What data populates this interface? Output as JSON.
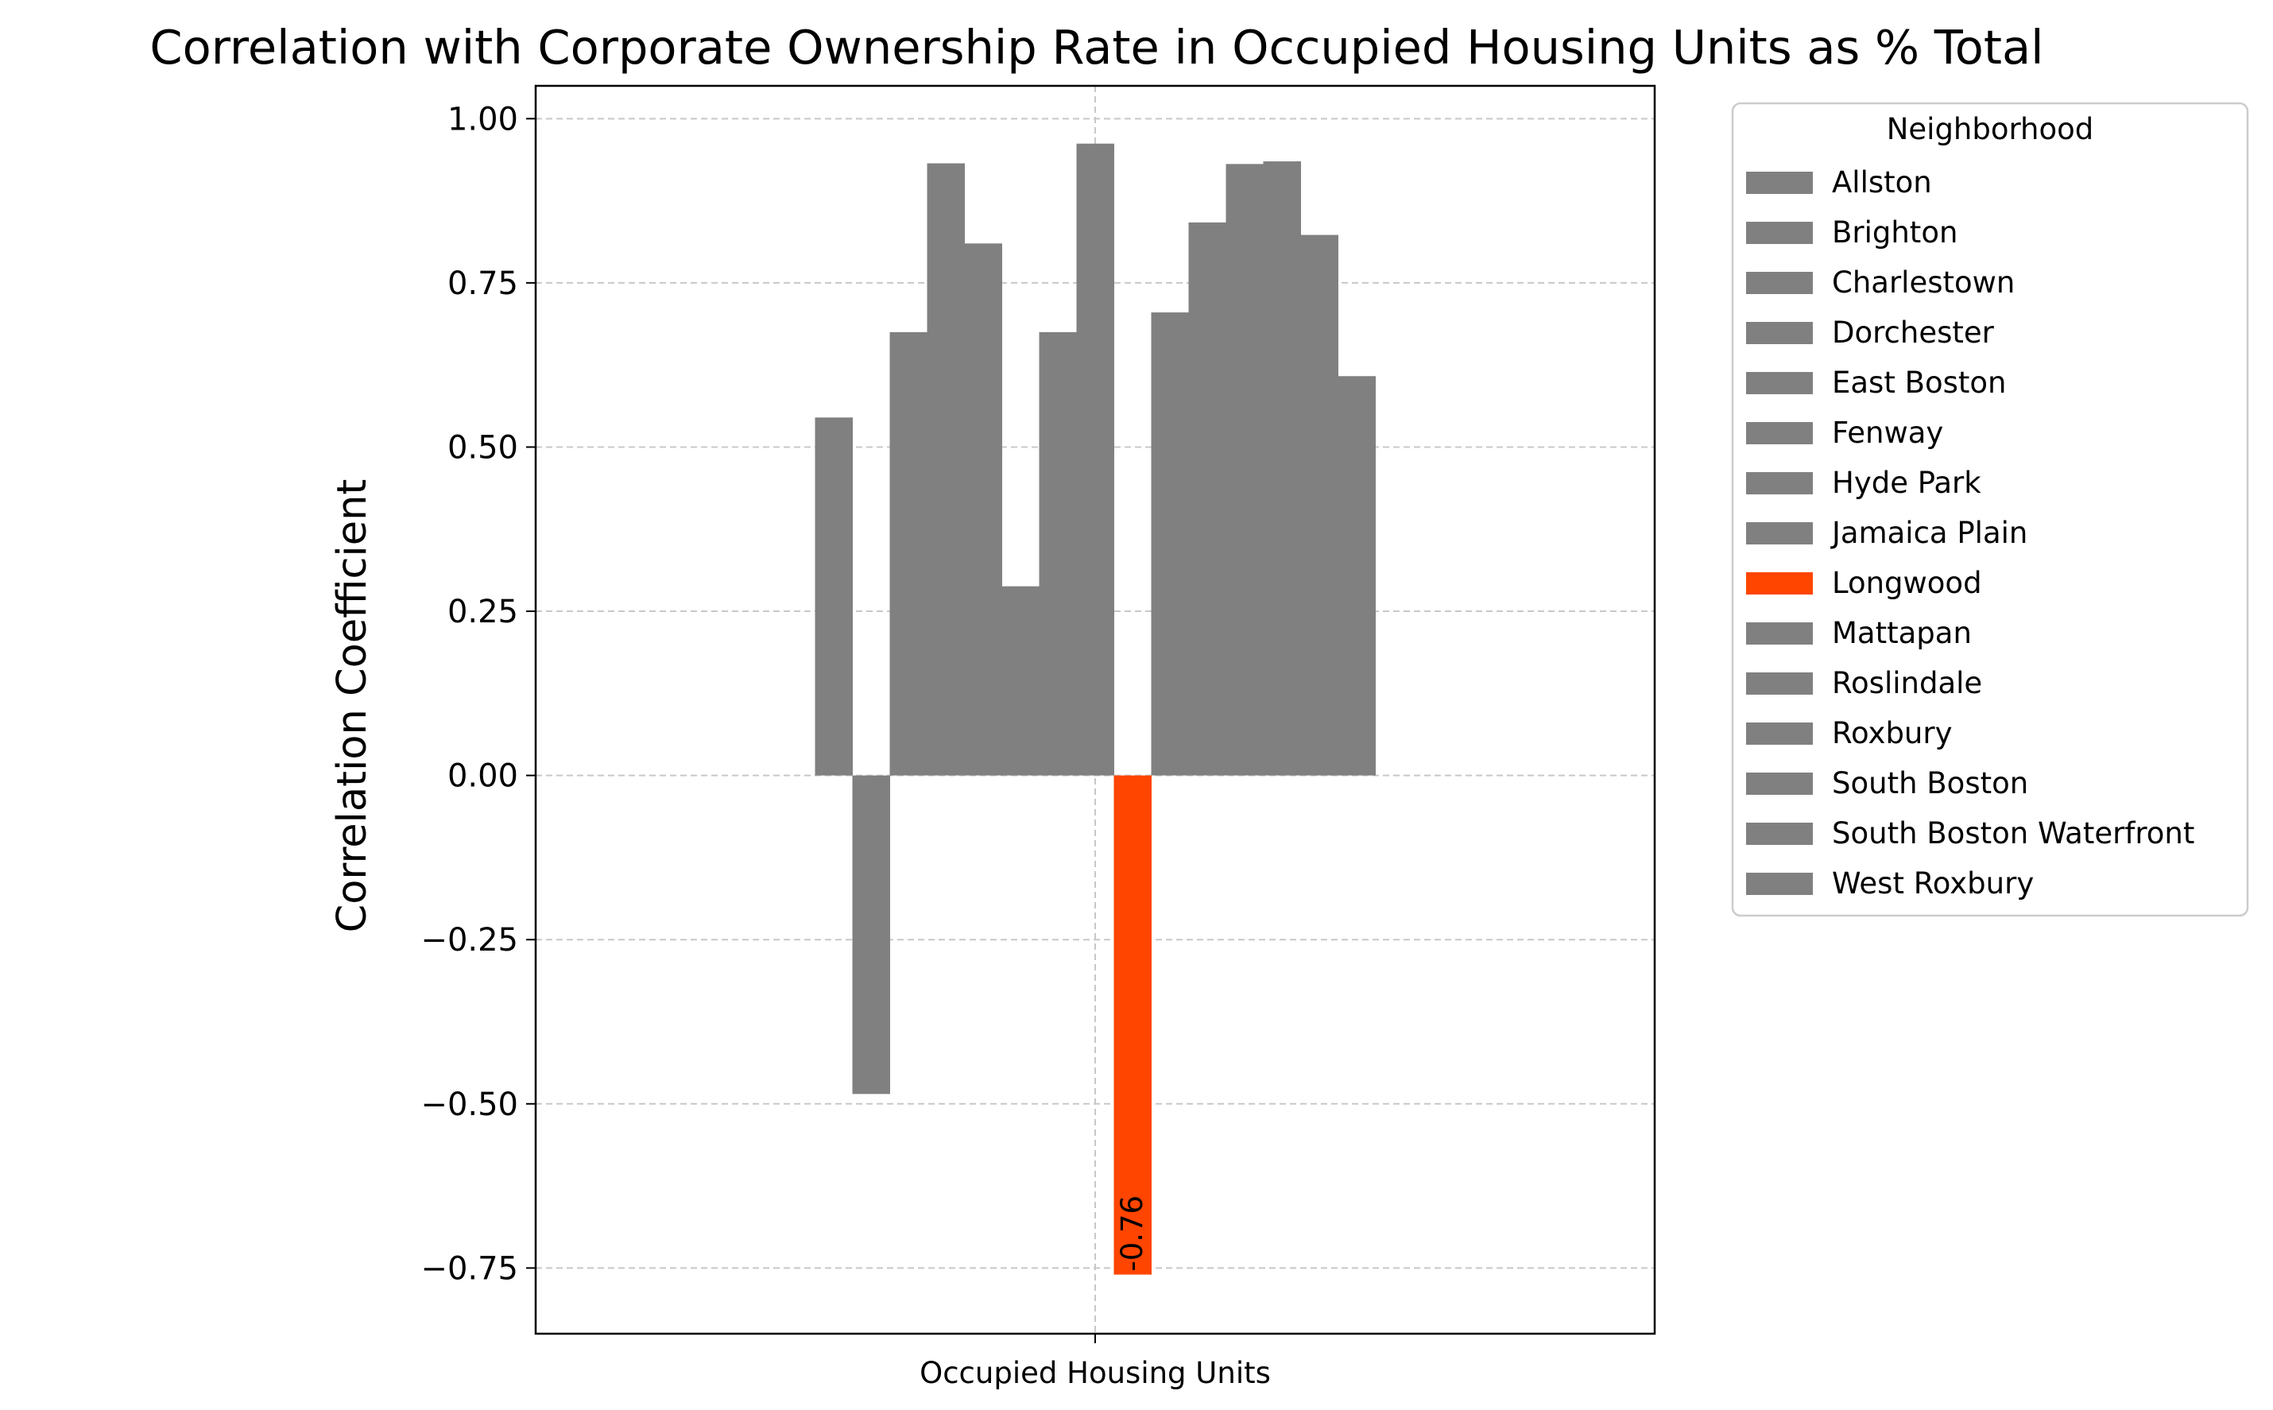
{
  "chart_data": {
    "type": "bar",
    "title": "Correlation with Corporate Ownership Rate in Occupied Housing Units as % Total",
    "xlabel": "",
    "ylabel": "Correlation Coefficient",
    "categories": [
      "Occupied Housing Units"
    ],
    "ylim": [
      -0.85,
      1.05
    ],
    "yticks": [
      -0.75,
      -0.5,
      -0.25,
      0.0,
      0.25,
      0.5,
      0.75,
      1.0
    ],
    "ytick_labels": [
      "−0.75",
      "−0.50",
      "−0.25",
      "0.00",
      "0.25",
      "0.50",
      "0.75",
      "1.00"
    ],
    "grid": true,
    "legend_title": "Neighborhood",
    "legend_position": "outside-right",
    "series": [
      {
        "name": "Allston",
        "values": [
          0.545
        ],
        "color": "#808080"
      },
      {
        "name": "Brighton",
        "values": [
          -0.485
        ],
        "color": "#808080"
      },
      {
        "name": "Charlestown",
        "values": [
          0.675
        ],
        "color": "#808080"
      },
      {
        "name": "Dorchester",
        "values": [
          0.932
        ],
        "color": "#808080"
      },
      {
        "name": "East Boston",
        "values": [
          0.81
        ],
        "color": "#808080"
      },
      {
        "name": "Fenway",
        "values": [
          0.288
        ],
        "color": "#808080"
      },
      {
        "name": "Hyde Park",
        "values": [
          0.675
        ],
        "color": "#808080"
      },
      {
        "name": "Jamaica Plain",
        "values": [
          0.962
        ],
        "color": "#808080"
      },
      {
        "name": "Longwood",
        "values": [
          -0.76
        ],
        "color": "#ff4500"
      },
      {
        "name": "Mattapan",
        "values": [
          0.705
        ],
        "color": "#808080"
      },
      {
        "name": "Roslindale",
        "values": [
          0.842
        ],
        "color": "#808080"
      },
      {
        "name": "Roxbury",
        "values": [
          0.931
        ],
        "color": "#808080"
      },
      {
        "name": "South Boston",
        "values": [
          0.935
        ],
        "color": "#808080"
      },
      {
        "name": "South Boston Waterfront",
        "values": [
          0.823
        ],
        "color": "#808080"
      },
      {
        "name": "West Roxbury",
        "values": [
          0.608
        ],
        "color": "#808080"
      }
    ],
    "annotations": [
      {
        "series": "Longwood",
        "text": "-0.76"
      }
    ]
  }
}
